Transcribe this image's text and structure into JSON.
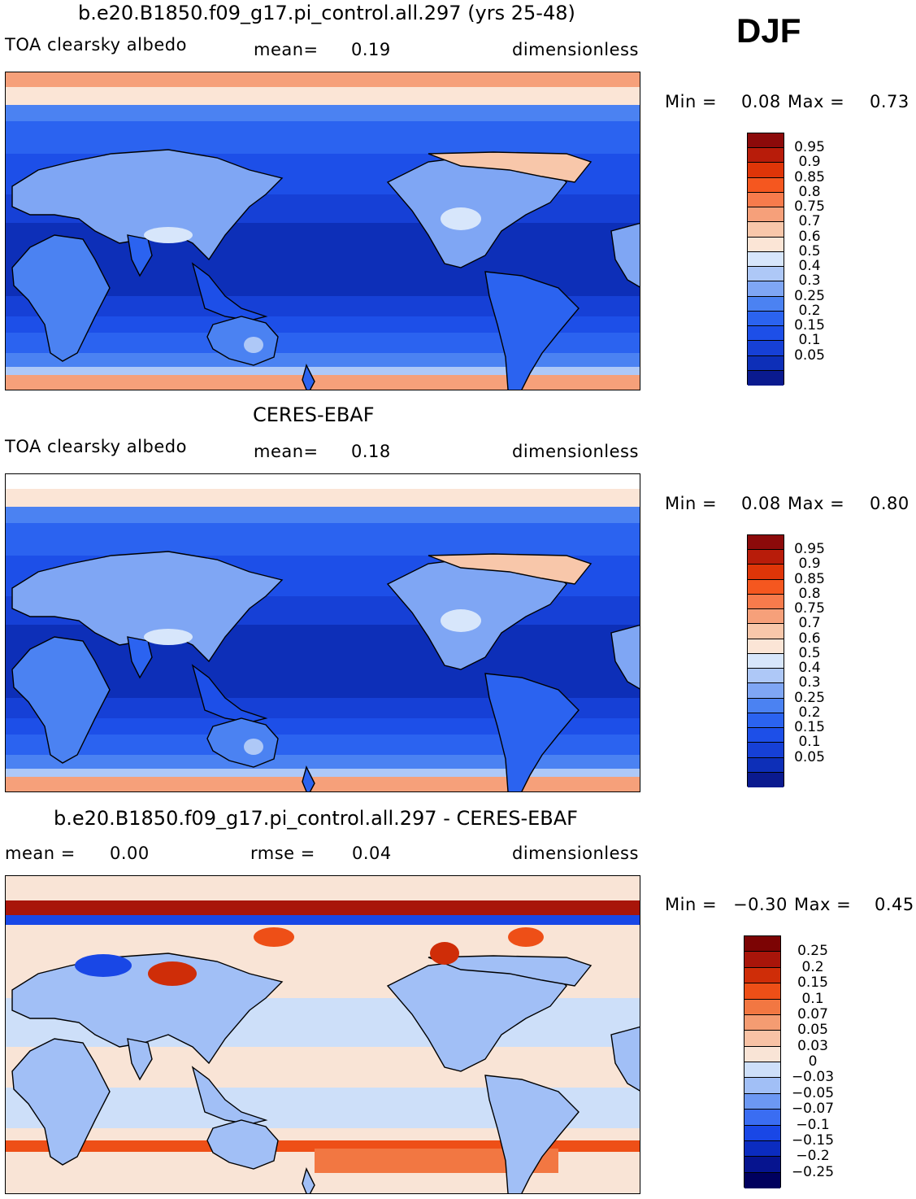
{
  "season": "DJF",
  "panels": [
    {
      "title": "b.e20.B1850.f09_g17.pi_control.all.297 (yrs 25-48)",
      "left_label": "TOA  clearsky  albedo",
      "mid_key": "mean=",
      "mid_val": "0.19",
      "right_label": "dimensionless",
      "min_key": "Min  =",
      "min_val": "0.08",
      "max_key": "Max  =",
      "max_val": "0.73",
      "palette": "abs",
      "legend": [
        "0.95",
        "0.9",
        "0.85",
        "0.8",
        "0.75",
        "0.7",
        "0.6",
        "0.5",
        "0.4",
        "0.3",
        "0.25",
        "0.2",
        "0.15",
        "0.1",
        "0.05"
      ]
    },
    {
      "title": "CERES-EBAF",
      "left_label": "TOA  clearsky  albedo",
      "mid_key": "mean=",
      "mid_val": "0.18",
      "right_label": "dimensionless",
      "min_key": "Min  =",
      "min_val": "0.08",
      "max_key": "Max  =",
      "max_val": "0.80",
      "palette": "abs",
      "legend": [
        "0.95",
        "0.9",
        "0.85",
        "0.8",
        "0.75",
        "0.7",
        "0.6",
        "0.5",
        "0.4",
        "0.3",
        "0.25",
        "0.2",
        "0.15",
        "0.1",
        "0.05"
      ]
    },
    {
      "title": "b.e20.B1850.f09_g17.pi_control.all.297 - CERES-EBAF",
      "left_label": "mean  =",
      "left_val": "0.00",
      "mid_key": "rmse  =",
      "mid_val": "0.04",
      "right_label": "dimensionless",
      "min_key": "Min  =",
      "min_val": "−0.30",
      "max_key": "Max  =",
      "max_val": "0.45",
      "palette": "diff",
      "legend": [
        "0.25",
        "0.2",
        "0.15",
        "0.1",
        "0.07",
        "0.05",
        "0.03",
        "0",
        "−0.03",
        "−0.05",
        "−0.07",
        "−0.1",
        "−0.15",
        "−0.2",
        "−0.25"
      ]
    }
  ],
  "colors": {
    "abs_palette": [
      "#0a1a8f",
      "#0d2fb8",
      "#1640d6",
      "#1d4fe8",
      "#2b63f0",
      "#4b82f2",
      "#7fa6f4",
      "#aec8f7",
      "#d7e6fb",
      "#fbe5d6",
      "#f8c7aa",
      "#f6a07a",
      "#f77b4c",
      "#f5571f",
      "#df3508",
      "#b81c0a",
      "#8c0a0a"
    ],
    "diff_palette": [
      "#00005e",
      "#06148f",
      "#0b2cc0",
      "#1947e6",
      "#3a6df2",
      "#6c98f3",
      "#a1bff6",
      "#cddff9",
      "#f9e4d6",
      "#f8c2a5",
      "#f49c72",
      "#f27742",
      "#ee4f17",
      "#cf2d08",
      "#a8150a",
      "#7c0404"
    ],
    "coast": "#000000"
  }
}
